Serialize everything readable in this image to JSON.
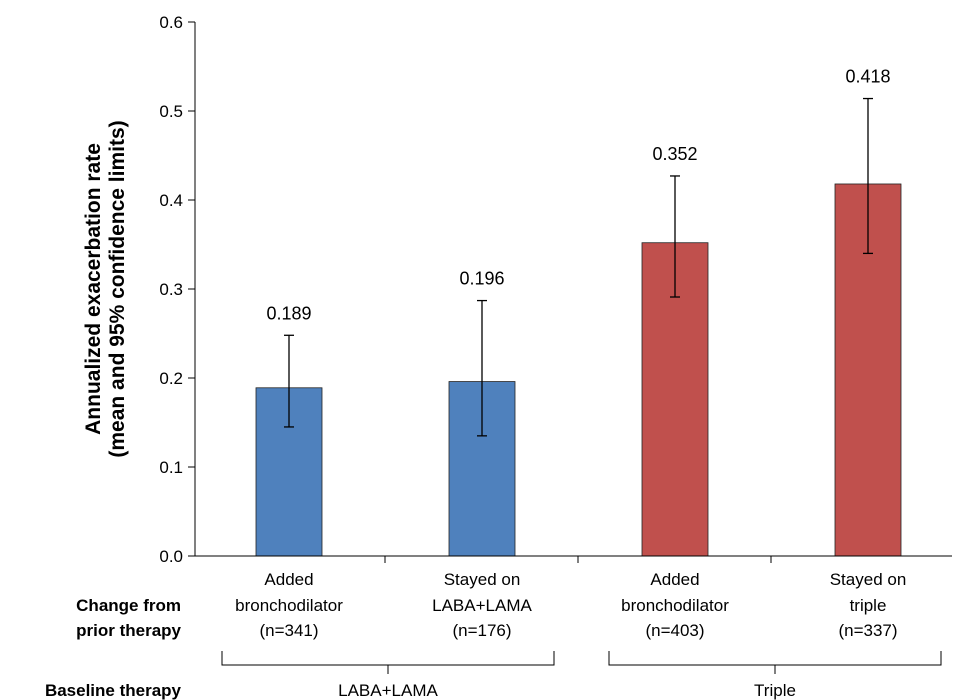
{
  "chart_data": {
    "type": "bar",
    "ylabel": [
      "Annualized exacerbation rate",
      "(mean and 95% confidence limits)"
    ],
    "ylim": [
      0,
      0.6
    ],
    "yticks": [
      "0.0",
      "0.1",
      "0.2",
      "0.3",
      "0.4",
      "0.5",
      "0.6"
    ],
    "grid": false,
    "categories": [
      [
        "Added",
        "bronchodilator",
        "(n=341)"
      ],
      [
        "Stayed on",
        "LABA+LAMA",
        "(n=176)"
      ],
      [
        "Added",
        "bronchodilator",
        "(n=403)"
      ],
      [
        "Stayed on",
        "triple",
        "(n=337)"
      ]
    ],
    "values": [
      0.189,
      0.196,
      0.352,
      0.418
    ],
    "value_labels": [
      "0.189",
      "0.196",
      "0.352",
      "0.418"
    ],
    "ci_lower": [
      0.145,
      0.135,
      0.291,
      0.34
    ],
    "ci_upper": [
      0.248,
      0.287,
      0.427,
      0.514
    ],
    "bar_colors": [
      "#4f81bd",
      "#4f81bd",
      "#c0504d",
      "#c0504d"
    ],
    "row_labels": {
      "change": [
        "Change from",
        "prior therapy"
      ],
      "baseline": "Baseline therapy"
    },
    "groups": [
      {
        "label": "LABA+LAMA",
        "bars": [
          0,
          1
        ]
      },
      {
        "label": "Triple",
        "bars": [
          2,
          3
        ]
      }
    ]
  }
}
